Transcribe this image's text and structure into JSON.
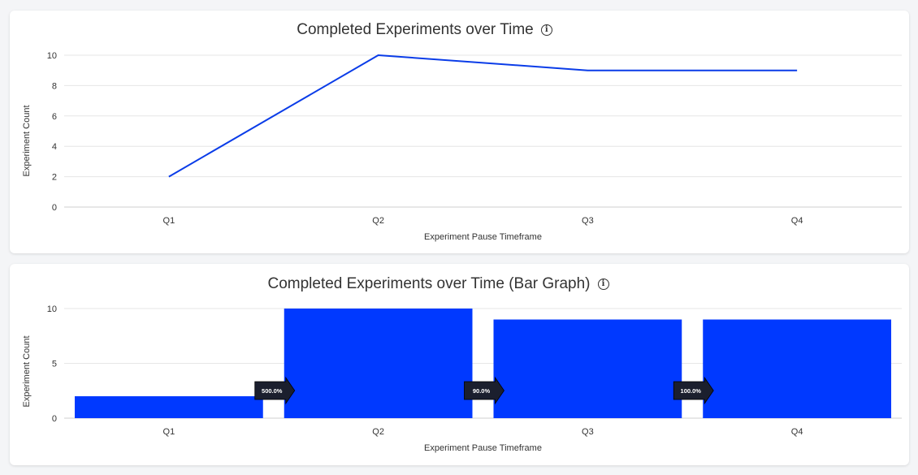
{
  "chart_data": [
    {
      "type": "line",
      "title": "Completed Experiments over Time",
      "xlabel": "Experiment Pause Timeframe",
      "ylabel": "Experiment Count",
      "categories": [
        "Q1",
        "Q2",
        "Q3",
        "Q4"
      ],
      "values": [
        2,
        10,
        9,
        9
      ],
      "ylim": [
        0,
        10
      ],
      "yticks": [
        0,
        2,
        4,
        6,
        8,
        10
      ],
      "grid": true,
      "color": "#0a3ce8"
    },
    {
      "type": "bar",
      "title": "Completed Experiments over Time (Bar Graph)",
      "xlabel": "Experiment Pause Timeframe",
      "ylabel": "Experiment Count",
      "categories": [
        "Q1",
        "Q2",
        "Q3",
        "Q4"
      ],
      "values": [
        2,
        10,
        9,
        9
      ],
      "ylim": [
        0,
        10
      ],
      "yticks": [
        0,
        5,
        10
      ],
      "grid": true,
      "color": "#0039ff",
      "change_labels": [
        "500.0%",
        "90.0%",
        "100.0%"
      ]
    }
  ]
}
